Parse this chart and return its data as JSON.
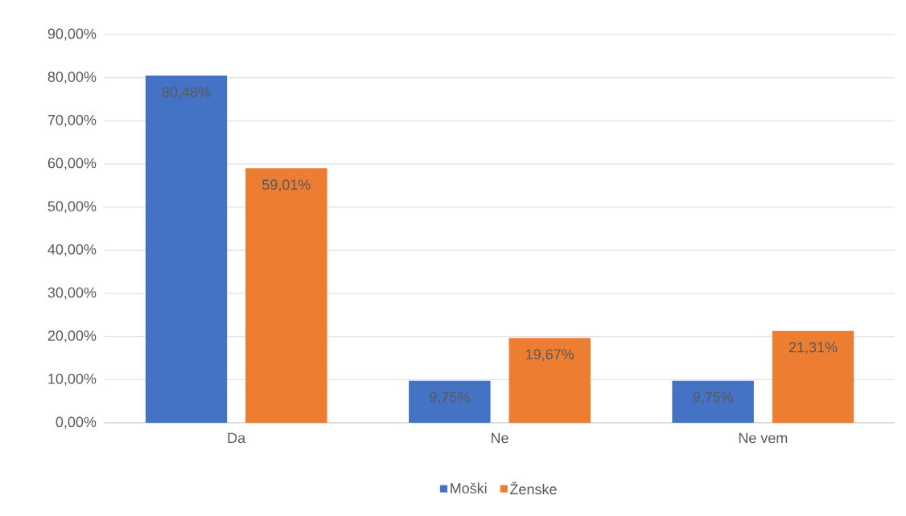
{
  "chart_data": {
    "type": "bar",
    "categories": [
      "Da",
      "Ne",
      "Ne vem"
    ],
    "series": [
      {
        "name": "Moški",
        "color": "#4472c4",
        "values": [
          80.48,
          9.75,
          9.75
        ],
        "value_labels": [
          "80,48%",
          "9,75%",
          "9,75%"
        ]
      },
      {
        "name": "Ženske",
        "color": "#ed7d31",
        "values": [
          59.01,
          19.67,
          21.31
        ],
        "value_labels": [
          "59,01%",
          "19,67%",
          "21,31%"
        ]
      }
    ],
    "ylim": [
      0,
      90
    ],
    "yticks": [
      {
        "value": 0,
        "label": "0,00%"
      },
      {
        "value": 10,
        "label": "10,00%"
      },
      {
        "value": 20,
        "label": "20,00%"
      },
      {
        "value": 30,
        "label": "30,00%"
      },
      {
        "value": 40,
        "label": "40,00%"
      },
      {
        "value": 50,
        "label": "50,00%"
      },
      {
        "value": 60,
        "label": "60,00%"
      },
      {
        "value": 70,
        "label": "70,00%"
      },
      {
        "value": 80,
        "label": "80,00%"
      },
      {
        "value": 90,
        "label": "90,00%"
      }
    ],
    "grid": "y",
    "legend": "bottom"
  }
}
